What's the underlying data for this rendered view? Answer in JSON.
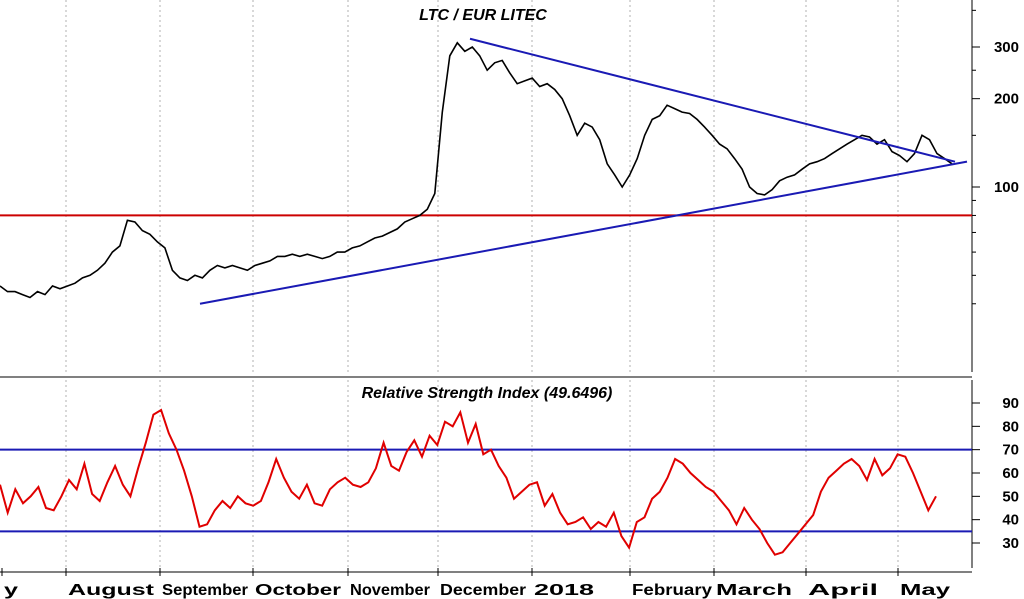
{
  "chart_data": [
    {
      "type": "line",
      "title": "LTC / EUR LITEC",
      "y_scale": "log",
      "y_ticks": [
        100,
        200,
        300
      ],
      "x_tick_labels": [
        "y",
        "August",
        "September",
        "October",
        "November",
        "December",
        "2018",
        "February",
        "March",
        "April",
        "May"
      ],
      "series": [
        {
          "values": [
            46,
            44,
            44,
            43,
            42,
            44,
            43,
            46,
            45,
            46,
            47,
            49,
            50,
            52,
            55,
            60,
            63,
            77,
            76,
            71,
            69,
            65,
            62,
            52,
            49,
            48,
            50,
            49,
            52,
            54,
            53,
            54,
            53,
            52,
            54,
            55,
            56,
            58,
            58,
            59,
            58,
            59,
            58,
            57,
            58,
            60,
            60,
            62,
            63,
            65,
            67,
            68,
            70,
            72,
            76,
            78,
            80,
            84,
            95,
            180,
            280,
            310,
            290,
            300,
            280,
            250,
            265,
            270,
            245,
            225,
            230,
            235,
            220,
            225,
            215,
            200,
            175,
            150,
            165,
            160,
            145,
            120,
            110,
            100,
            110,
            125,
            150,
            170,
            175,
            190,
            185,
            180,
            178,
            170,
            160,
            150,
            140,
            135,
            125,
            115,
            100,
            95,
            94,
            98,
            105,
            108,
            110,
            115,
            120,
            122,
            125,
            130,
            135,
            140,
            145,
            150,
            148,
            140,
            145,
            132,
            128,
            122,
            130,
            150,
            145,
            130,
            125,
            120
          ]
        }
      ],
      "annotations": [
        {
          "type": "horizontal_line",
          "value": 80,
          "color": "#cc0000"
        },
        {
          "type": "trendline",
          "from": [
            200,
            40
          ],
          "to": [
            967,
            122
          ],
          "color": "#1a1ab4"
        },
        {
          "type": "trendline",
          "from": [
            470,
            320
          ],
          "to": [
            955,
            122
          ],
          "color": "#1a1ab4"
        }
      ]
    },
    {
      "type": "line",
      "title": "Relative Strength Index (49.6496)",
      "ylim": [
        20,
        100
      ],
      "y_ticks": [
        30,
        40,
        50,
        60,
        70,
        80,
        90
      ],
      "reference_lines": [
        70,
        35
      ],
      "series": [
        {
          "values": [
            55,
            43,
            53,
            47,
            50,
            54,
            45,
            44,
            50,
            57,
            53,
            64,
            51,
            48,
            56,
            63,
            55,
            50,
            62,
            73,
            85,
            87,
            77,
            70,
            61,
            50,
            37,
            38,
            44,
            48,
            45,
            50,
            47,
            46,
            48,
            56,
            66,
            58,
            52,
            49,
            55,
            47,
            46,
            53,
            56,
            58,
            55,
            54,
            56,
            62,
            73,
            63,
            61,
            69,
            74,
            67,
            76,
            72,
            82,
            80,
            86,
            73,
            81,
            68,
            70,
            63,
            58,
            49,
            52,
            55,
            56,
            46,
            51,
            43,
            38,
            39,
            41,
            36,
            39,
            37,
            43,
            33,
            28,
            39,
            41,
            49,
            52,
            58,
            66,
            64,
            60,
            57,
            54,
            52,
            48,
            44,
            38,
            45,
            40,
            36,
            30,
            25,
            26,
            30,
            34,
            38,
            42,
            52,
            58,
            61,
            64,
            66,
            63,
            57,
            66,
            59,
            62,
            68,
            67,
            60,
            52,
            44,
            50
          ]
        }
      ],
      "annotations": [
        {
          "type": "horizontal_line",
          "value": 70,
          "color": "#1a1ab4"
        },
        {
          "type": "horizontal_line",
          "value": 35,
          "color": "#1a1ab4"
        }
      ]
    }
  ],
  "colors": {
    "price": "#000000",
    "rsi": "#e00000",
    "trend": "#1a1ab4",
    "support": "#cc0000",
    "grid": "#b0b0b0"
  }
}
